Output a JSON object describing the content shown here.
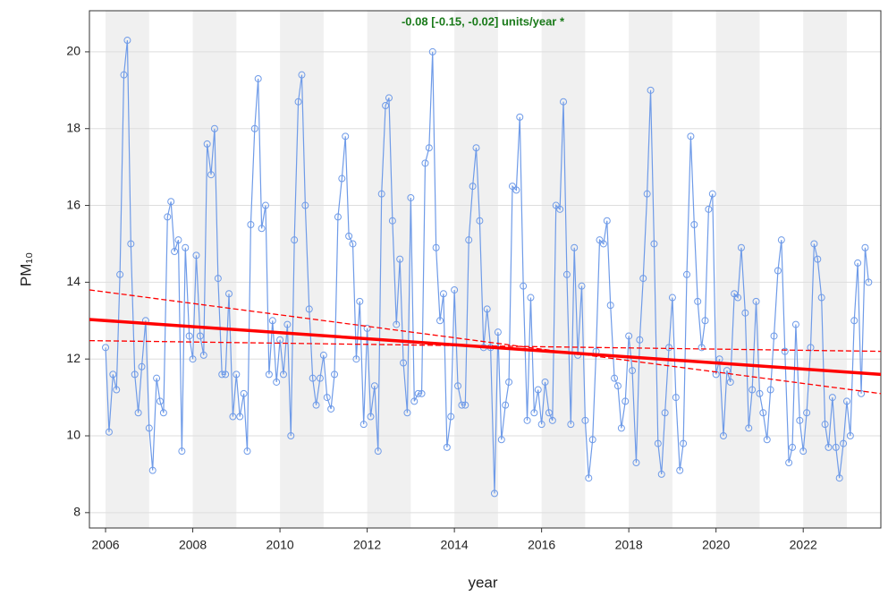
{
  "chart_data": {
    "type": "line",
    "annotation": "-0.08 [-0.15, -0.02] units/year *",
    "annotation_color": "#1a7a1a",
    "xlabel": "year",
    "ylabel": "PM₁₀",
    "xlim": [
      2005.63,
      2023.78
    ],
    "ylim": [
      7.6,
      21.07
    ],
    "xticks": [
      2006,
      2008,
      2010,
      2012,
      2014,
      2016,
      2018,
      2020,
      2022
    ],
    "yticks": [
      8,
      10,
      12,
      14,
      16,
      18,
      20
    ],
    "grid": true,
    "shade_alternate_years": true,
    "color": "#6f9be8",
    "x": [
      2006.0,
      2006.08,
      2006.17,
      2006.25,
      2006.33,
      2006.42,
      2006.5,
      2006.58,
      2006.67,
      2006.75,
      2006.83,
      2006.92,
      2007.0,
      2007.08,
      2007.17,
      2007.25,
      2007.33,
      2007.42,
      2007.5,
      2007.58,
      2007.67,
      2007.75,
      2007.83,
      2007.92,
      2008.0,
      2008.08,
      2008.17,
      2008.25,
      2008.33,
      2008.42,
      2008.5,
      2008.58,
      2008.67,
      2008.75,
      2008.83,
      2008.92,
      2009.0,
      2009.08,
      2009.17,
      2009.25,
      2009.33,
      2009.42,
      2009.5,
      2009.58,
      2009.67,
      2009.75,
      2009.83,
      2009.92,
      2010.0,
      2010.08,
      2010.17,
      2010.25,
      2010.33,
      2010.42,
      2010.5,
      2010.58,
      2010.67,
      2010.75,
      2010.83,
      2010.92,
      2011.0,
      2011.08,
      2011.17,
      2011.25,
      2011.33,
      2011.42,
      2011.5,
      2011.58,
      2011.67,
      2011.75,
      2011.83,
      2011.92,
      2012.0,
      2012.08,
      2012.17,
      2012.25,
      2012.33,
      2012.42,
      2012.5,
      2012.58,
      2012.67,
      2012.75,
      2012.83,
      2012.92,
      2013.0,
      2013.08,
      2013.17,
      2013.25,
      2013.33,
      2013.42,
      2013.5,
      2013.58,
      2013.67,
      2013.75,
      2013.83,
      2013.92,
      2014.0,
      2014.08,
      2014.17,
      2014.25,
      2014.33,
      2014.42,
      2014.5,
      2014.58,
      2014.67,
      2014.75,
      2014.83,
      2014.92,
      2015.0,
      2015.08,
      2015.17,
      2015.25,
      2015.33,
      2015.42,
      2015.5,
      2015.58,
      2015.67,
      2015.75,
      2015.83,
      2015.92,
      2016.0,
      2016.08,
      2016.17,
      2016.25,
      2016.33,
      2016.42,
      2016.5,
      2016.58,
      2016.67,
      2016.75,
      2016.83,
      2016.92,
      2017.0,
      2017.08,
      2017.17,
      2017.25,
      2017.33,
      2017.42,
      2017.5,
      2017.58,
      2017.67,
      2017.75,
      2017.83,
      2017.92,
      2018.0,
      2018.08,
      2018.17,
      2018.25,
      2018.33,
      2018.42,
      2018.5,
      2018.58,
      2018.67,
      2018.75,
      2018.83,
      2018.92,
      2019.0,
      2019.08,
      2019.17,
      2019.25,
      2019.33,
      2019.42,
      2019.5,
      2019.58,
      2019.67,
      2019.75,
      2019.83,
      2019.92,
      2020.0,
      2020.08,
      2020.17,
      2020.25,
      2020.33,
      2020.42,
      2020.5,
      2020.58,
      2020.67,
      2020.75,
      2020.83,
      2020.92,
      2021.0,
      2021.08,
      2021.17,
      2021.25,
      2021.33,
      2021.42,
      2021.5,
      2021.58,
      2021.67,
      2021.75,
      2021.83,
      2021.92,
      2022.0,
      2022.08,
      2022.17,
      2022.25,
      2022.33,
      2022.42,
      2022.5,
      2022.58,
      2022.67,
      2022.75,
      2022.83,
      2022.92,
      2023.0,
      2023.08,
      2023.17,
      2023.25,
      2023.33,
      2023.42,
      2023.5
    ],
    "values": [
      12.3,
      10.1,
      11.6,
      11.2,
      14.2,
      19.4,
      20.3,
      15.0,
      11.6,
      10.6,
      11.8,
      13.0,
      10.2,
      9.1,
      11.5,
      10.9,
      10.6,
      15.7,
      16.1,
      14.8,
      15.1,
      9.6,
      14.9,
      12.6,
      12.0,
      14.7,
      12.6,
      12.1,
      17.6,
      16.8,
      18.0,
      14.1,
      11.6,
      11.6,
      13.7,
      10.5,
      11.6,
      10.5,
      11.1,
      9.6,
      15.5,
      18.0,
      19.3,
      15.4,
      16.0,
      11.6,
      13.0,
      11.4,
      12.5,
      11.6,
      12.9,
      10.0,
      15.1,
      18.7,
      19.4,
      16.0,
      13.3,
      11.5,
      10.8,
      11.5,
      12.1,
      11.0,
      10.7,
      11.6,
      15.7,
      16.7,
      17.8,
      15.2,
      15.0,
      12.0,
      13.5,
      10.3,
      12.8,
      10.5,
      11.3,
      9.6,
      16.3,
      18.6,
      18.8,
      15.6,
      12.9,
      14.6,
      11.9,
      10.6,
      16.2,
      10.9,
      11.1,
      11.1,
      17.1,
      17.5,
      20.0,
      14.9,
      13.0,
      13.7,
      9.7,
      10.5,
      13.8,
      11.3,
      10.8,
      10.8,
      15.1,
      16.5,
      17.5,
      15.6,
      12.3,
      13.3,
      12.3,
      8.5,
      12.7,
      9.9,
      10.8,
      11.4,
      16.5,
      16.4,
      18.3,
      13.9,
      10.4,
      13.6,
      10.6,
      11.2,
      10.3,
      11.4,
      10.6,
      10.4,
      16.0,
      15.9,
      18.7,
      14.2,
      10.3,
      14.9,
      12.1,
      13.9,
      10.4,
      8.9,
      9.9,
      12.2,
      15.1,
      15.0,
      15.6,
      13.4,
      11.5,
      11.3,
      10.2,
      10.9,
      12.6,
      11.7,
      9.3,
      12.5,
      14.1,
      16.3,
      19.0,
      15.0,
      9.8,
      9.0,
      10.6,
      12.3,
      13.6,
      11.0,
      9.1,
      9.8,
      14.2,
      17.8,
      15.5,
      13.5,
      12.3,
      13.0,
      15.9,
      16.3,
      11.6,
      12.0,
      10.0,
      11.7,
      11.4,
      13.7,
      13.6,
      14.9,
      13.2,
      10.2,
      11.2,
      13.5,
      11.1,
      10.6,
      9.9,
      11.2,
      12.6,
      14.3,
      15.1,
      12.2,
      9.3,
      9.7,
      12.9,
      10.4,
      9.6,
      10.6,
      12.3,
      15.0,
      14.6,
      13.6,
      10.3,
      9.7,
      11.0,
      9.7,
      8.9,
      9.8,
      10.9,
      10.0,
      13.0,
      14.5,
      11.1,
      14.9,
      14.0
    ],
    "trend_lines": [
      {
        "x": [
          2005.63,
          2023.78
        ],
        "values": [
          13.03,
          11.6
        ],
        "color": "#ff0000",
        "dashed": false
      },
      {
        "x": [
          2005.63,
          2023.78
        ],
        "values": [
          13.8,
          11.1
        ],
        "color": "#ff0000",
        "dashed": true
      },
      {
        "x": [
          2005.63,
          2023.78
        ],
        "values": [
          12.48,
          12.2
        ],
        "color": "#ff0000",
        "dashed": true
      }
    ]
  }
}
